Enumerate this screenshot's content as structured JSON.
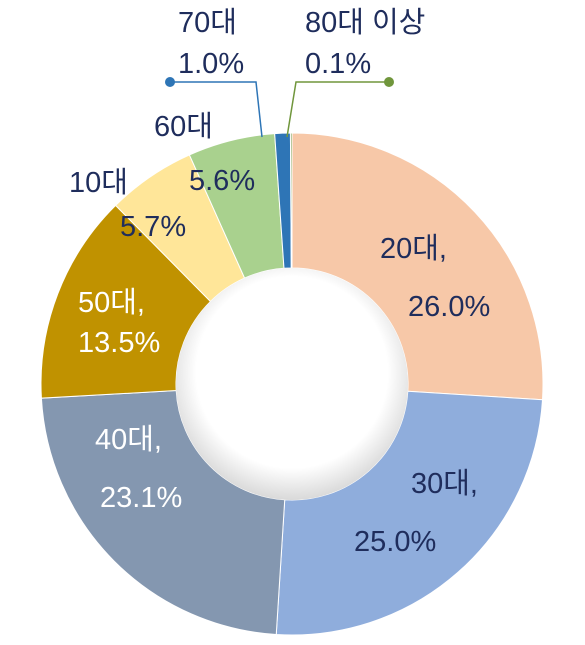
{
  "chart_data": {
    "type": "pie",
    "donut": true,
    "categories": [
      "20대",
      "30대",
      "40대",
      "50대",
      "10대",
      "60대",
      "70대",
      "80대 이상"
    ],
    "values": [
      26.0,
      25.0,
      23.1,
      13.5,
      5.7,
      5.6,
      1.0,
      0.1
    ],
    "colors": [
      "#F7C8A8",
      "#8FADDC",
      "#8497B0",
      "#C09200",
      "#FFE699",
      "#A9D18E",
      "#2E75B6",
      "#70963C"
    ],
    "labels": [
      {
        "name": "20대,",
        "value": "26.0%"
      },
      {
        "name": "30대,",
        "value": "25.0%"
      },
      {
        "name": "40대,",
        "value": "23.1%"
      },
      {
        "name": "50대,",
        "value": "13.5%"
      },
      {
        "name": "10대",
        "value": "5.7%"
      },
      {
        "name": "60대",
        "value": "5.6%"
      },
      {
        "name": "70대",
        "value": "1.0%"
      },
      {
        "name": "80대 이상",
        "value": "0.1%"
      }
    ],
    "label_colors": {
      "dark": "#1F2D5C",
      "light": "#FFFFFF"
    },
    "legend": "none"
  }
}
